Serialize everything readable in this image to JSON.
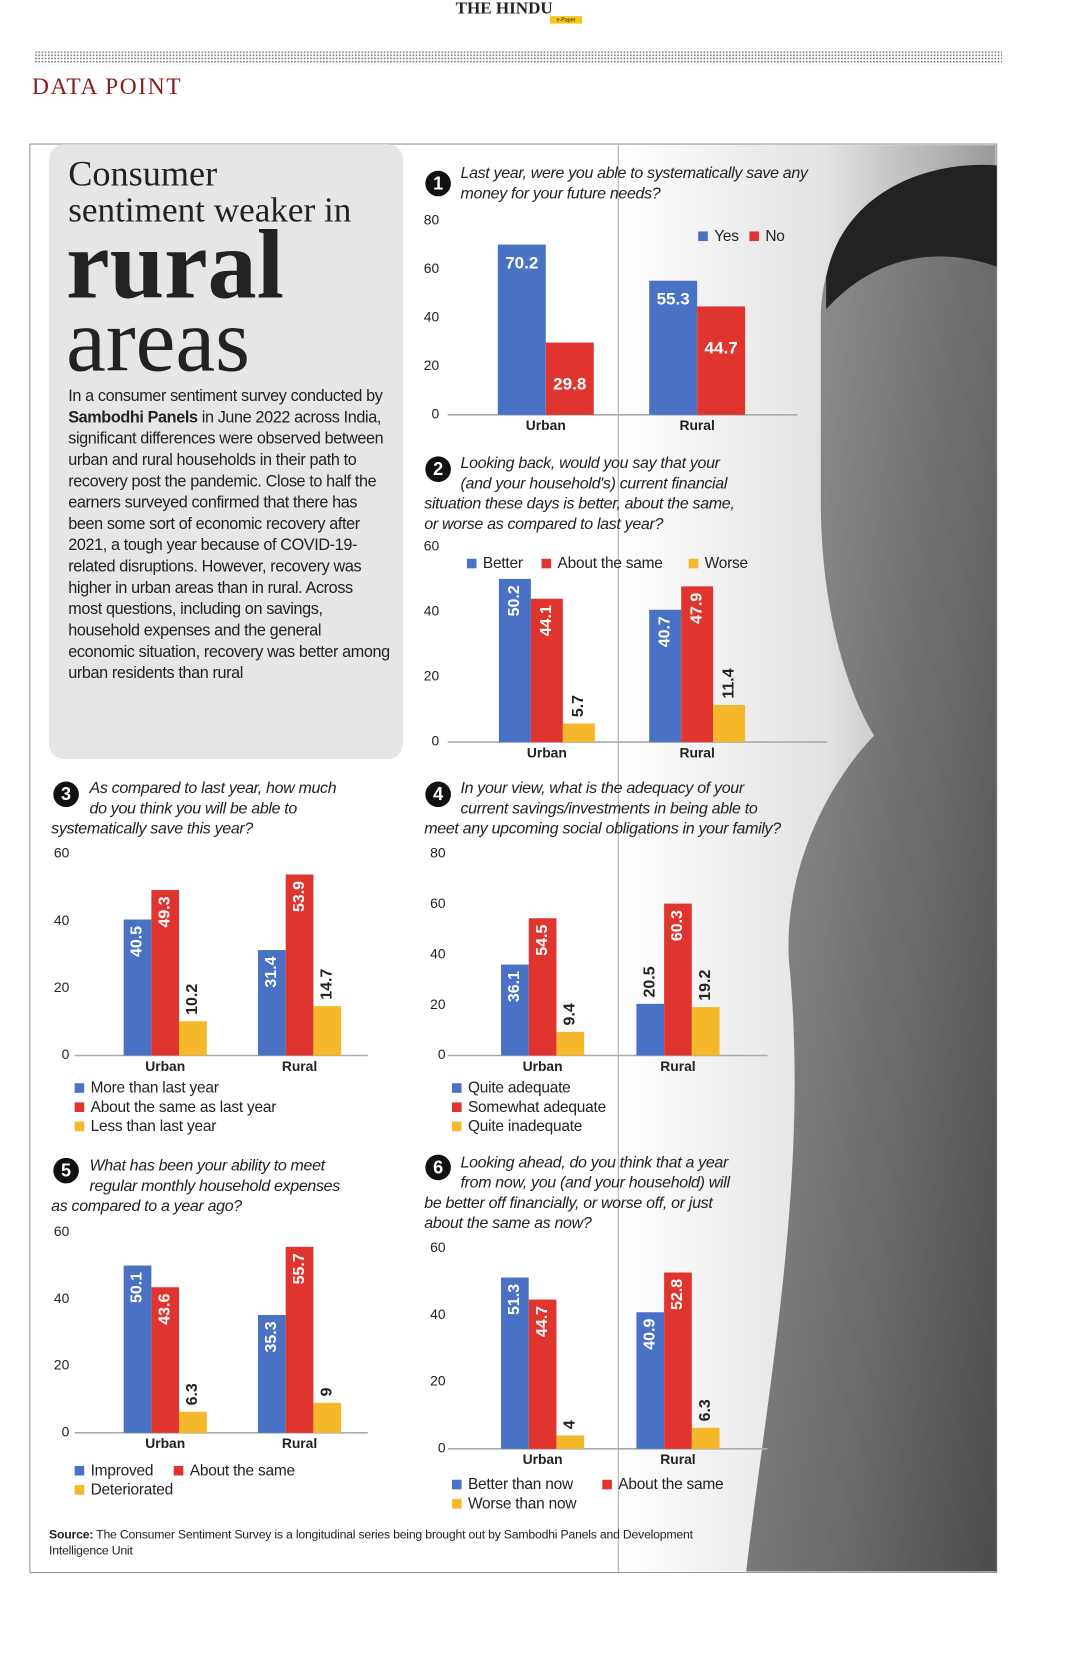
{
  "header": {
    "paper": "THE HINDU",
    "edition": "e-Paper",
    "section": "DATA POINT"
  },
  "headline": {
    "line1": "Consumer",
    "line2": "sentiment weaker in",
    "line3": "rural",
    "line4": "areas"
  },
  "intro": [
    "In a consumer sentiment survey conducted by ",
    "Sambodhi Panels",
    " in June 2022 across India, significant differences were observed between urban and rural households in their path to recovery post the pandemic. Close to half the earners surveyed confirmed that there has been some sort of economic recovery after 2021, a tough year because of COVID-19-related disruptions. However, recovery was higher in urban areas than in rural. Across most questions, including on savings, household expenses and the general economic situation, recovery was better among urban residents than rural"
  ],
  "source": {
    "label": "Source:",
    "text": " The Consumer Sentiment Survey is a longitudinal series being brought out by Sambodhi Panels and Development Intelligence Unit"
  },
  "chart_data": [
    {
      "type": "bar",
      "number": 1,
      "title": [
        "Last year, were you able to systematically save any",
        "money for your future needs?"
      ],
      "categories": [
        "Urban",
        "Rural"
      ],
      "legend": "top-right",
      "series": [
        {
          "name": "Yes",
          "color": "#4a72c4",
          "values": [
            70.2,
            55.3
          ]
        },
        {
          "name": "No",
          "color": "#e0352f",
          "values": [
            29.8,
            44.7
          ]
        }
      ],
      "ylim": [
        0,
        80
      ],
      "yticks": [
        0,
        20,
        40,
        60,
        80
      ],
      "grid": false
    },
    {
      "type": "bar",
      "number": 2,
      "title": [
        "Looking back, would you say that your",
        "(and your household's) current financial",
        "situation these days is better, about the same,",
        "or worse as compared to last year?"
      ],
      "categories": [
        "Urban",
        "Rural"
      ],
      "legend": "top",
      "series": [
        {
          "name": "Better",
          "color": "#4a72c4",
          "values": [
            50.2,
            40.7
          ]
        },
        {
          "name": "About the same",
          "color": "#e0352f",
          "values": [
            44.1,
            47.9
          ]
        },
        {
          "name": "Worse",
          "color": "#f5b82a",
          "values": [
            5.7,
            11.4
          ]
        }
      ],
      "ylim": [
        0,
        60
      ],
      "yticks": [
        0,
        20,
        40,
        60
      ],
      "grid": false
    },
    {
      "type": "bar",
      "number": 3,
      "title": [
        "As compared to last year, how much",
        "do you think you will be able to",
        "systematically save this year?"
      ],
      "categories": [
        "Urban",
        "Rural"
      ],
      "legend": "bottom",
      "series": [
        {
          "name": "More than last year",
          "color": "#4a72c4",
          "values": [
            40.5,
            31.4
          ]
        },
        {
          "name": "About the same as last year",
          "color": "#e0352f",
          "values": [
            49.3,
            53.9
          ]
        },
        {
          "name": "Less than last year",
          "color": "#f5b82a",
          "values": [
            10.2,
            14.7
          ]
        }
      ],
      "ylim": [
        0,
        60
      ],
      "yticks": [
        0,
        20,
        40,
        60
      ],
      "grid": false
    },
    {
      "type": "bar",
      "number": 4,
      "title": [
        "In your view, what is the adequacy of your",
        "current savings/investments in being able to",
        "meet any upcoming social obligations in your family?"
      ],
      "categories": [
        "Urban",
        "Rural"
      ],
      "legend": "bottom",
      "series": [
        {
          "name": "Quite adequate",
          "color": "#4a72c4",
          "values": [
            36.1,
            20.5
          ]
        },
        {
          "name": "Somewhat adequate",
          "color": "#e0352f",
          "values": [
            54.5,
            60.3
          ]
        },
        {
          "name": "Quite inadequate",
          "color": "#f5b82a",
          "values": [
            9.4,
            19.2
          ]
        }
      ],
      "ylim": [
        0,
        80
      ],
      "yticks": [
        0,
        20,
        40,
        60,
        80
      ],
      "grid": false
    },
    {
      "type": "bar",
      "number": 5,
      "title": [
        "What has been your ability to meet",
        "regular monthly household expenses",
        "as compared to a year ago?"
      ],
      "categories": [
        "Urban",
        "Rural"
      ],
      "legend": "bottom",
      "series": [
        {
          "name": "Improved",
          "color": "#4a72c4",
          "values": [
            50.1,
            35.3
          ]
        },
        {
          "name": "About the same",
          "color": "#e0352f",
          "values": [
            43.6,
            55.7
          ]
        },
        {
          "name": "Deteriorated",
          "color": "#f5b82a",
          "values": [
            6.3,
            9
          ]
        }
      ],
      "ylim": [
        0,
        60
      ],
      "yticks": [
        0,
        20,
        40,
        60
      ],
      "grid": false
    },
    {
      "type": "bar",
      "number": 6,
      "title": [
        "Looking ahead, do you think that a year",
        "from now, you (and your household) will",
        "be better off financially, or worse off, or just",
        "about the same as now?"
      ],
      "categories": [
        "Urban",
        "Rural"
      ],
      "legend": "bottom",
      "series": [
        {
          "name": "Better than now",
          "color": "#4a72c4",
          "values": [
            51.3,
            40.9
          ]
        },
        {
          "name": "About the same",
          "color": "#e0352f",
          "values": [
            44.7,
            52.8
          ]
        },
        {
          "name": "Worse than now",
          "color": "#f5b82a",
          "values": [
            4,
            6.3
          ]
        }
      ],
      "ylim": [
        0,
        60
      ],
      "yticks": [
        0,
        20,
        40,
        60
      ],
      "grid": false
    }
  ]
}
